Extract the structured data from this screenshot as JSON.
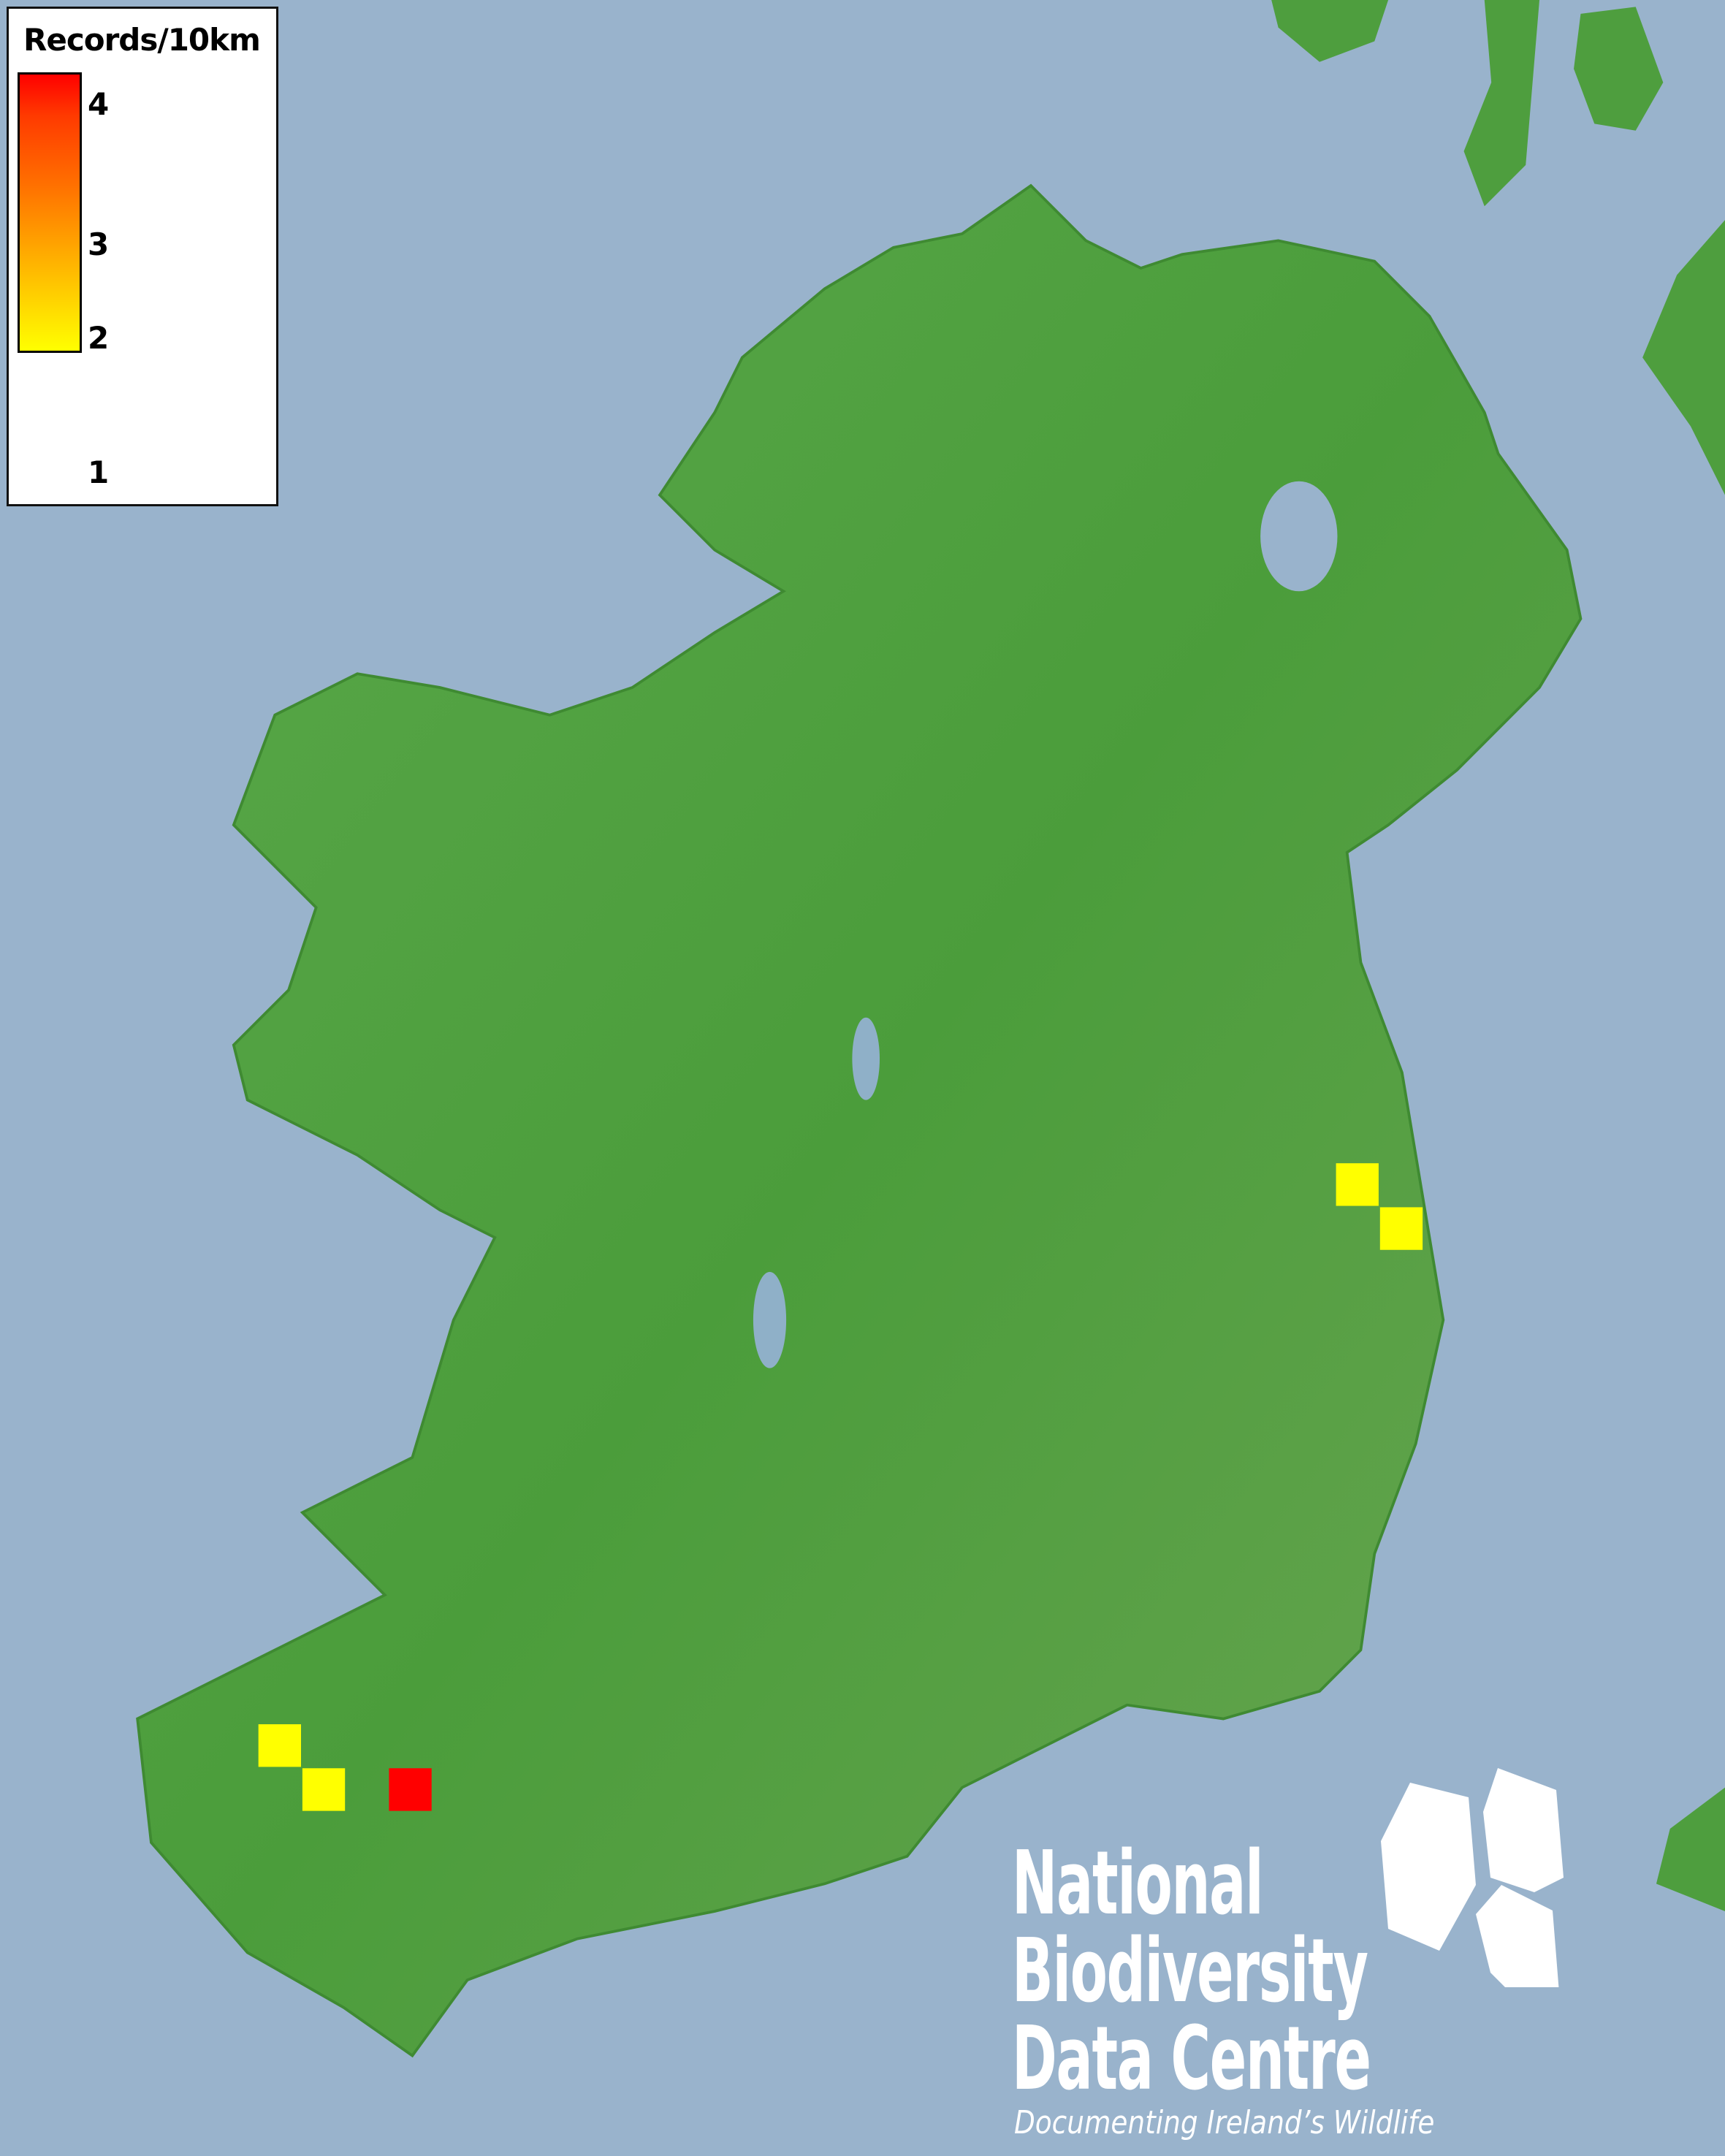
{
  "map": {
    "colors": {
      "sea": "#99b3cc",
      "land": "#4a9e3a",
      "low": "#ffff00",
      "high": "#ff0000"
    },
    "legend": {
      "title": "Records/10km",
      "ticks": [
        "4",
        "3",
        "2",
        "1"
      ],
      "min": 1,
      "max": 4
    },
    "records": [
      {
        "square": "east-coast-1",
        "value": 1
      },
      {
        "square": "east-coast-2",
        "value": 1
      },
      {
        "square": "kerry-1",
        "value": 1
      },
      {
        "square": "kerry-2",
        "value": 1
      },
      {
        "square": "kerry-3",
        "value": 4
      }
    ]
  },
  "logo": {
    "line1": "National",
    "line2": "Biodiversity",
    "line3": "Data Centre",
    "tagline": "Documenting Ireland’s Wildlife"
  }
}
